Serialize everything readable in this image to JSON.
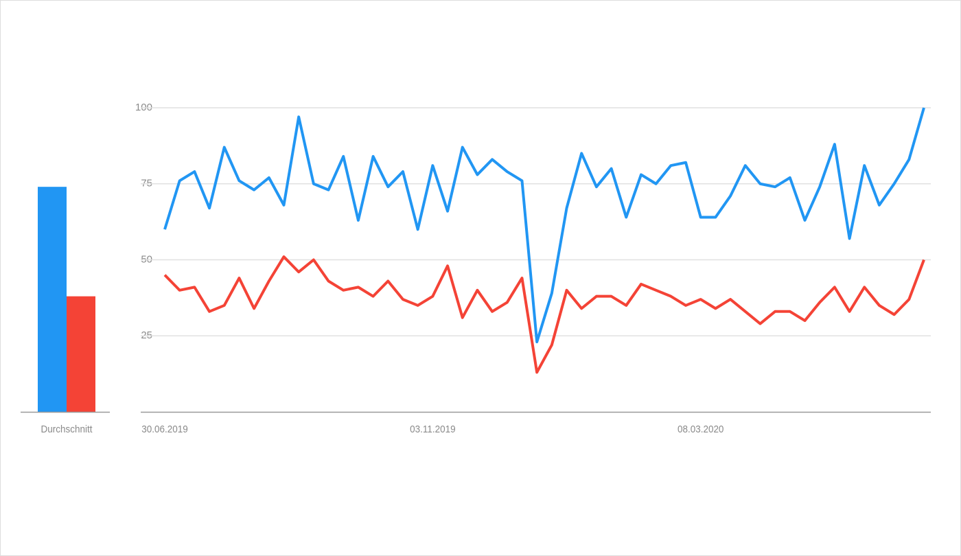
{
  "chart_data": [
    {
      "type": "bar",
      "categories": [
        "Durchschnitt"
      ],
      "series": [
        {
          "color": "#2196f3",
          "values": [
            74
          ]
        },
        {
          "color": "#f44336",
          "values": [
            38
          ]
        }
      ],
      "ylim": [
        0,
        100
      ]
    },
    {
      "type": "line",
      "categories": [
        "30.06.2019",
        null,
        null,
        null,
        null,
        null,
        null,
        null,
        null,
        null,
        null,
        null,
        null,
        null,
        null,
        null,
        null,
        null,
        "03.11.2019",
        null,
        null,
        null,
        null,
        null,
        null,
        null,
        null,
        null,
        null,
        null,
        null,
        null,
        null,
        null,
        null,
        null,
        "08.03.2020",
        null,
        null,
        null,
        null,
        null,
        null,
        null,
        null,
        null,
        null,
        null,
        null,
        null,
        null,
        null
      ],
      "series": [
        {
          "color": "#f44336",
          "values": [
            45,
            40,
            41,
            33,
            35,
            44,
            34,
            43,
            51,
            46,
            50,
            43,
            40,
            41,
            38,
            43,
            37,
            35,
            38,
            48,
            31,
            40,
            33,
            36,
            44,
            13,
            22,
            40,
            34,
            38,
            38,
            35,
            42,
            40,
            38,
            35,
            37,
            34,
            37,
            33,
            29,
            33,
            33,
            30,
            36,
            41,
            33,
            41,
            35,
            32,
            37,
            50
          ]
        },
        {
          "color": "#2196f3",
          "values": [
            60,
            76,
            79,
            67,
            87,
            76,
            73,
            77,
            68,
            97,
            75,
            73,
            84,
            63,
            84,
            74,
            79,
            60,
            81,
            66,
            87,
            78,
            83,
            79,
            76,
            23,
            39,
            67,
            85,
            74,
            80,
            64,
            78,
            75,
            81,
            82,
            64,
            64,
            71,
            81,
            75,
            74,
            77,
            63,
            74,
            88,
            57,
            81,
            68,
            75,
            83,
            100
          ]
        }
      ],
      "ylim": [
        0,
        100
      ],
      "yticks": [
        25,
        50,
        75,
        100
      ],
      "grid": true
    }
  ]
}
